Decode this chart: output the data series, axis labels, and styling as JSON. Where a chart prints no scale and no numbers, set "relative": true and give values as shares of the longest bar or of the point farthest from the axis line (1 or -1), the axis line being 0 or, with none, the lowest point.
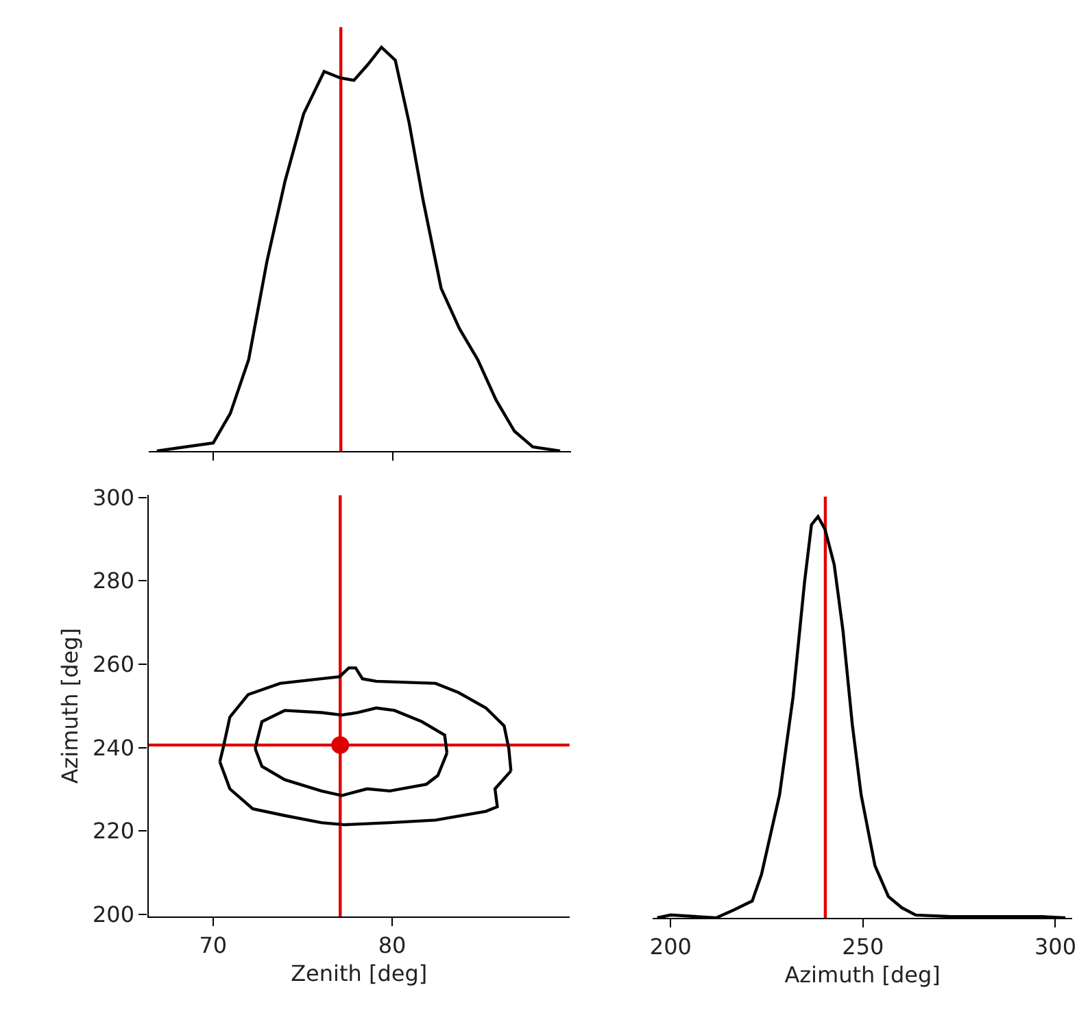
{
  "chart_data": [
    {
      "type": "line",
      "relative": true,
      "xlim": [
        66.4,
        89.9
      ],
      "xticks": [
        70,
        80
      ],
      "tick_labels": false,
      "line_style": "solid",
      "series": [
        {
          "color": "#000000",
          "x": [
            66.86,
            70.0,
            70.95,
            71.97,
            72.99,
            74.0,
            75.03,
            76.17,
            77.07,
            77.83,
            78.6,
            79.36,
            80.13,
            80.9,
            81.66,
            82.68,
            83.7,
            84.72,
            85.74,
            86.76,
            87.78,
            89.3
          ],
          "values": [
            0,
            0.02,
            0.093,
            0.226,
            0.47,
            0.669,
            0.835,
            0.94,
            0.924,
            0.918,
            0.957,
            1,
            0.968,
            0.813,
            0.625,
            0.403,
            0.303,
            0.226,
            0.126,
            0.049,
            0.01,
            0
          ]
        }
      ],
      "ref_lines": [
        {
          "axis": "x",
          "value": 77.1,
          "color": "#e00000"
        }
      ]
    },
    {
      "type": "line",
      "xlabel": "Zenith [deg]",
      "ylabel": "Azimuth [deg]",
      "xlim": [
        66.4,
        89.9
      ],
      "ylim": [
        199.5,
        300.5
      ],
      "xticks": [
        70,
        80
      ],
      "yticks": [
        200,
        220,
        240,
        260,
        280,
        300
      ],
      "line_style": "solid",
      "series": [
        {
          "color": "#000000",
          "x": [
            70.38,
            70.56,
            70.94,
            71.96,
            73.75,
            76.05,
            77.07,
            77.58,
            77.96,
            78.34,
            79.11,
            82.42,
            83.7,
            85.23,
            86.25,
            86.51,
            86.63
          ],
          "values": [
            236.6,
            239.8,
            247.3,
            252.7,
            255.4,
            256.5,
            257.0,
            259.1,
            259.1,
            256.5,
            255.9,
            255.4,
            253.2,
            249.5,
            245.2,
            239.8,
            234.4
          ]
        },
        {
          "color": "#000000",
          "x": [
            70.38,
            70.94,
            72.22,
            74.0,
            76.05,
            77.32,
            79.87,
            82.42,
            85.23,
            85.87,
            85.74,
            86.63
          ],
          "values": [
            236.6,
            230.1,
            225.3,
            223.7,
            222.0,
            221.5,
            222.0,
            222.6,
            224.7,
            225.8,
            230.1,
            234.4
          ]
        },
        {
          "color": "#000000",
          "x": [
            72.35,
            72.73,
            74.0,
            76.05,
            77.19,
            78.09,
            79.11,
            80.13,
            81.66,
            82.93,
            83.06
          ],
          "values": [
            239.8,
            246.2,
            248.9,
            248.4,
            247.8,
            248.4,
            249.5,
            248.9,
            246.2,
            243.0,
            238.7
          ]
        },
        {
          "color": "#000000",
          "x": [
            72.35,
            72.73,
            74.0,
            76.05,
            77.19,
            78.6,
            79.87,
            81.91,
            82.55,
            83.06
          ],
          "values": [
            239.8,
            235.5,
            232.3,
            229.6,
            228.5,
            230.1,
            229.6,
            231.2,
            233.3,
            238.7
          ]
        },
        {
          "type": "scatter",
          "marker": "circle",
          "color": "#e00000",
          "x": [
            77.1
          ],
          "values": [
            240.6
          ]
        }
      ],
      "ref_lines": [
        {
          "axis": "x",
          "value": 77.1,
          "color": "#e00000"
        },
        {
          "axis": "y",
          "value": 240.6,
          "color": "#e00000"
        }
      ]
    },
    {
      "type": "line",
      "relative": true,
      "xlabel": "Azimuth [deg]",
      "xlim": [
        195.3,
        304.4
      ],
      "xticks": [
        200,
        250,
        300
      ],
      "tick_labels": "x",
      "line_style": "solid",
      "series": [
        {
          "color": "#000000",
          "x": [
            196.5,
            200.0,
            211.8,
            216.5,
            221.2,
            223.6,
            228.3,
            231.8,
            234.8,
            236.6,
            238.3,
            240.1,
            242.5,
            244.8,
            247.2,
            249.5,
            253.1,
            256.6,
            260.1,
            263.7,
            273.1,
            296.7,
            302.6
          ],
          "values": [
            0,
            0.007,
            0,
            0.02,
            0.042,
            0.108,
            0.307,
            0.55,
            0.837,
            0.98,
            1,
            0.969,
            0.881,
            0.715,
            0.483,
            0.307,
            0.13,
            0.053,
            0.025,
            0.007,
            0.003,
            0.003,
            0
          ]
        }
      ],
      "ref_lines": [
        {
          "axis": "x",
          "value": 240.2,
          "color": "#e00000"
        }
      ]
    }
  ]
}
